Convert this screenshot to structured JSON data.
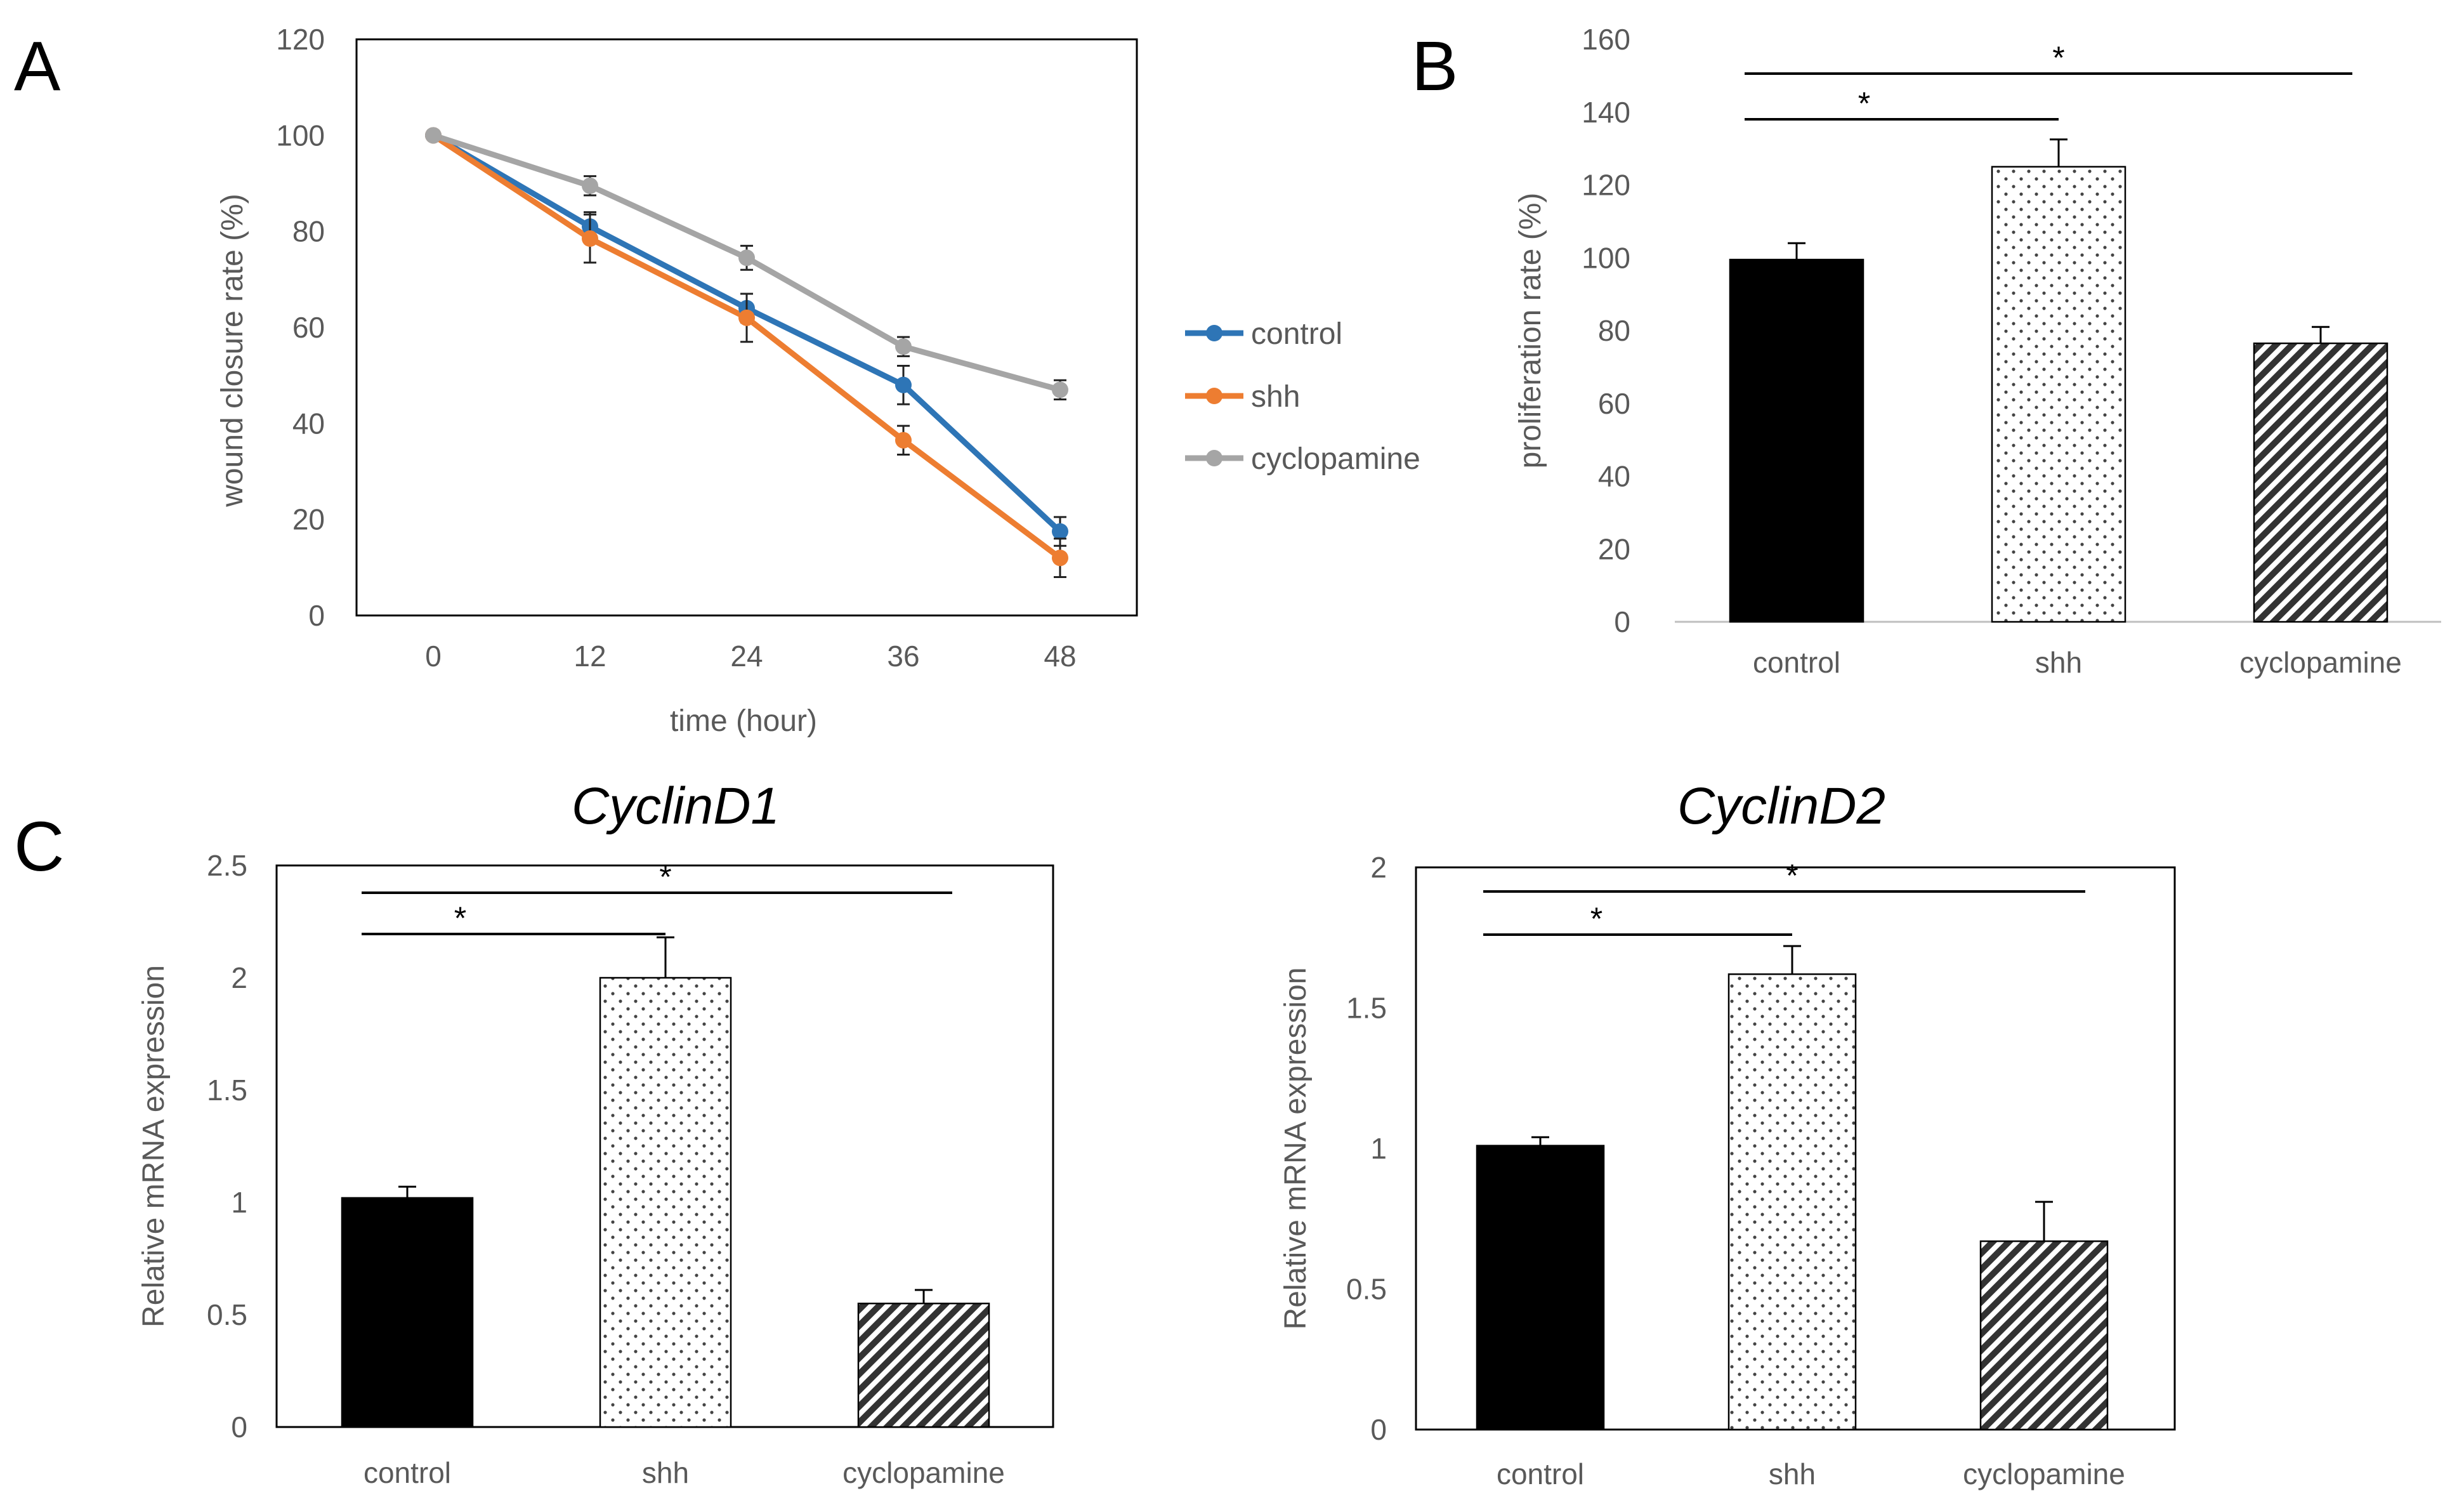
{
  "panels": {
    "A": {
      "letter": "A",
      "chart_data": {
        "type": "line",
        "title": "",
        "xlabel": "time (hour)",
        "ylabel": "wound closure rate (%)",
        "x": [
          0,
          12,
          24,
          36,
          48
        ],
        "x_tick_labels": [
          "0",
          "12",
          "24",
          "36",
          "48"
        ],
        "ylim": [
          0,
          120
        ],
        "y_ticks": [
          0,
          20,
          40,
          60,
          80,
          100,
          120
        ],
        "legend_position": "right",
        "series": [
          {
            "name": "control",
            "color": "#2E75B6",
            "values": [
              100,
              81,
              64,
              48,
              17.5
            ],
            "errors": [
              0,
              3,
              3,
              4,
              3
            ]
          },
          {
            "name": "shh",
            "color": "#ED7D31",
            "values": [
              100,
              78.5,
              62,
              36.5,
              12
            ],
            "errors": [
              0,
              5,
              5,
              3,
              4
            ]
          },
          {
            "name": "cyclopamine",
            "color": "#A5A5A5",
            "values": [
              100,
              89.5,
              74.5,
              56,
              47
            ],
            "errors": [
              0,
              2,
              2.5,
              2,
              2
            ]
          }
        ]
      }
    },
    "B": {
      "letter": "B",
      "chart_data": {
        "type": "bar",
        "title": "",
        "xlabel": "",
        "ylabel": "proliferation rate (%)",
        "categories": [
          "control",
          "shh",
          "cyclopamine"
        ],
        "values": [
          99.5,
          125,
          76.5
        ],
        "errors": [
          4.5,
          7.5,
          4.5
        ],
        "ylim": [
          0,
          160
        ],
        "y_ticks": [
          0,
          20,
          40,
          60,
          80,
          100,
          120,
          140,
          160
        ],
        "significance": [
          {
            "from": "control",
            "to": "shh",
            "label": "*"
          },
          {
            "from": "control",
            "to": "cyclopamine",
            "label": "*"
          }
        ]
      }
    },
    "C": {
      "letter": "C",
      "charts": [
        {
          "title": "CyclinD1",
          "chart_data": {
            "type": "bar",
            "title": "CyclinD1",
            "xlabel": "",
            "ylabel": "Relative mRNA expression",
            "categories": [
              "control",
              "shh",
              "cyclopamine"
            ],
            "values": [
              1.02,
              2.0,
              0.55
            ],
            "errors": [
              0.05,
              0.18,
              0.06
            ],
            "ylim": [
              0,
              2.5
            ],
            "y_ticks": [
              0,
              0.5,
              1,
              1.5,
              2,
              2.5
            ],
            "y_tick_labels": [
              "0",
              "0.5",
              "1",
              "1.5",
              "2",
              "2.5"
            ],
            "significance": [
              {
                "from": "control",
                "to": "shh",
                "label": "*"
              },
              {
                "from": "control",
                "to": "cyclopamine",
                "label": "*"
              }
            ]
          }
        },
        {
          "title": "CyclinD2",
          "chart_data": {
            "type": "bar",
            "title": "CyclinD2",
            "xlabel": "",
            "ylabel": "Relative mRNA expression",
            "categories": [
              "control",
              "shh",
              "cyclopamine"
            ],
            "values": [
              1.01,
              1.62,
              0.67
            ],
            "errors": [
              0.03,
              0.1,
              0.14
            ],
            "ylim": [
              0,
              2
            ],
            "y_ticks": [
              0,
              0.5,
              1,
              1.5,
              2
            ],
            "y_tick_labels": [
              "0",
              "0.5",
              "1",
              "1.5",
              "2"
            ],
            "significance": [
              {
                "from": "control",
                "to": "shh",
                "label": "*"
              },
              {
                "from": "control",
                "to": "cyclopamine",
                "label": "*"
              }
            ]
          }
        }
      ]
    }
  },
  "bar_fills": [
    "solid-black",
    "dotted",
    "diagonal-hatch"
  ]
}
